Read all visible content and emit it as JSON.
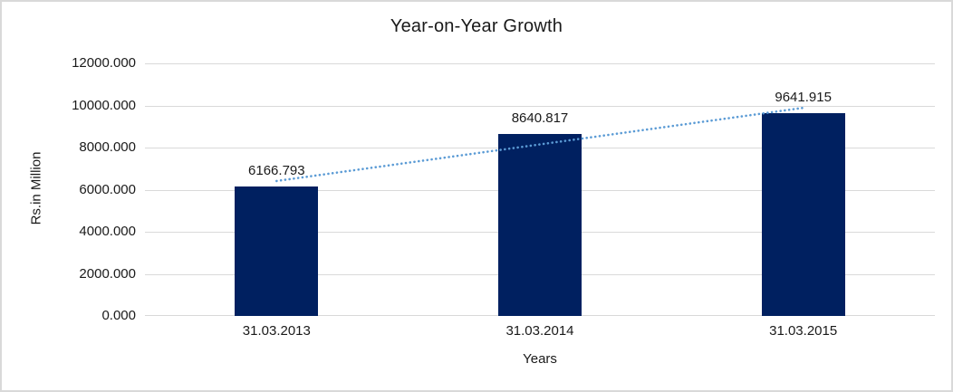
{
  "chart_data": {
    "type": "bar",
    "title": "Year-on-Year Growth",
    "xlabel": "Years",
    "ylabel": "Rs.in Million",
    "categories": [
      "31.03.2013",
      "31.03.2014",
      "31.03.2015"
    ],
    "values": [
      6166.793,
      8640.817,
      9641.915
    ],
    "data_labels": [
      "6166.793",
      "8640.817",
      "9641.915"
    ],
    "ylim": [
      0,
      12000
    ],
    "ytick_step": 2000,
    "ytick_labels": [
      "0.000",
      "2000.000",
      "4000.000",
      "6000.000",
      "8000.000",
      "10000.000",
      "12000.000"
    ],
    "grid": true,
    "legend": "none",
    "trendline": {
      "type": "linear",
      "style": "dotted"
    },
    "colors": {
      "bar": "#002060",
      "trendline": "#5B9BD5",
      "gridline": "#D9D9D9",
      "text": "#1A1A1A",
      "frame_border": "#D9D9D9"
    }
  }
}
